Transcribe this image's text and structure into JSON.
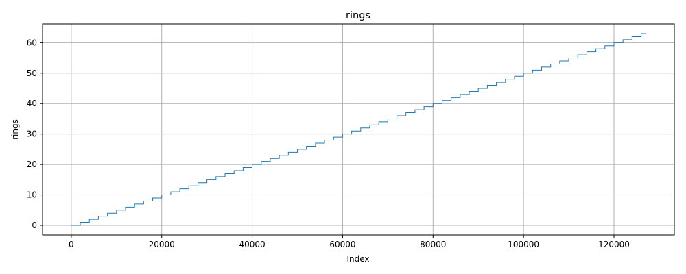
{
  "chart_data": {
    "type": "line",
    "title": "rings",
    "xlabel": "Index",
    "ylabel": "rings",
    "xlim": [
      -6350,
      133350
    ],
    "ylim": [
      -3.15,
      66.15
    ],
    "xticks": [
      0,
      20000,
      40000,
      60000,
      80000,
      100000,
      120000
    ],
    "xtick_labels": [
      "0",
      "20000",
      "40000",
      "60000",
      "80000",
      "100000",
      "120000"
    ],
    "yticks": [
      0,
      10,
      20,
      30,
      40,
      50,
      60
    ],
    "ytick_labels": [
      "0",
      "10",
      "20",
      "30",
      "40",
      "50",
      "60"
    ],
    "grid": true,
    "step": "post",
    "series": [
      {
        "color": "#1f77b4",
        "x": [
          0,
          2000,
          4000,
          6000,
          8000,
          10000,
          12000,
          14000,
          16000,
          18000,
          20000,
          22000,
          24000,
          26000,
          28000,
          30000,
          32000,
          34000,
          36000,
          38000,
          40000,
          42000,
          44000,
          46000,
          48000,
          50000,
          52000,
          54000,
          56000,
          58000,
          60000,
          62000,
          64000,
          66000,
          68000,
          70000,
          72000,
          74000,
          76000,
          78000,
          80000,
          82000,
          84000,
          86000,
          88000,
          90000,
          92000,
          94000,
          96000,
          98000,
          100000,
          102000,
          104000,
          106000,
          108000,
          110000,
          112000,
          114000,
          116000,
          118000,
          120000,
          122000,
          124000,
          126000,
          127000
        ],
        "y": [
          0,
          1,
          2,
          3,
          4,
          5,
          6,
          7,
          8,
          9,
          10,
          11,
          12,
          13,
          14,
          15,
          16,
          17,
          18,
          19,
          20,
          21,
          22,
          23,
          24,
          25,
          26,
          27,
          28,
          29,
          30,
          31,
          32,
          33,
          34,
          35,
          36,
          37,
          38,
          39,
          40,
          41,
          42,
          43,
          44,
          45,
          46,
          47,
          48,
          49,
          50,
          51,
          52,
          53,
          54,
          55,
          56,
          57,
          58,
          59,
          60,
          61,
          62,
          63,
          63
        ]
      }
    ]
  }
}
